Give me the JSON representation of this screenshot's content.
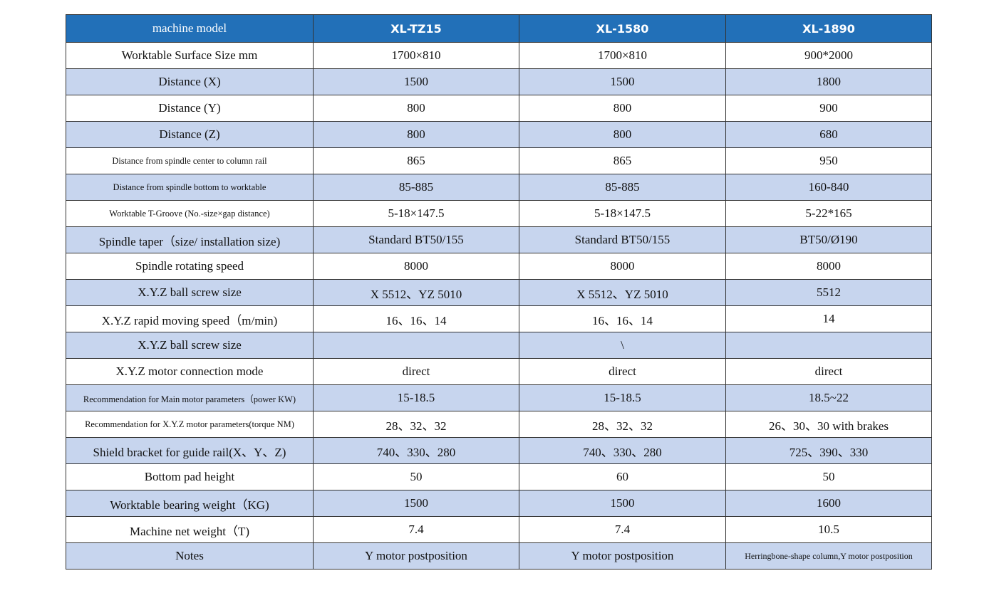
{
  "table": {
    "header": [
      "machine model",
      "XL-TZ15",
      "XL-1580",
      "XL-1890"
    ],
    "rows": [
      [
        "Worktable Surface Size mm",
        "1700×810",
        "1700×810",
        "900*2000"
      ],
      [
        "Distance (X)",
        "1500",
        "1500",
        "1800"
      ],
      [
        "Distance (Y)",
        "800",
        "800",
        "900"
      ],
      [
        "Distance (Z)",
        "800",
        "800",
        "680"
      ],
      [
        "Distance from spindle center to column rail",
        "865",
        "865",
        "950"
      ],
      [
        "Distance from spindle bottom to worktable",
        "85-885",
        "85-885",
        "160-840"
      ],
      [
        "Worktable T-Groove (No.-size×gap distance)",
        "5-18×147.5",
        "5-18×147.5",
        "5-22*165"
      ],
      [
        "Spindle taper（size/ installation size)",
        "Standard BT50/155",
        "Standard BT50/155",
        "BT50/Ø190"
      ],
      [
        "Spindle rotating speed",
        "8000",
        "8000",
        "8000"
      ],
      [
        "X.Y.Z ball screw size",
        "X 5512、YZ  5010",
        "X  5512、YZ  5010",
        "5512"
      ],
      [
        "X.Y.Z rapid moving speed（m/min)",
        "16、16、14",
        "16、16、14",
        "14"
      ],
      [
        "X.Y.Z ball screw size",
        null,
        "\\",
        null
      ],
      [
        "X.Y.Z motor connection mode",
        "direct",
        "direct",
        "direct"
      ],
      [
        "Recommendation for Main motor parameters（power KW)",
        "15-18.5",
        "15-18.5",
        "18.5~22"
      ],
      [
        "Recommendation for X.Y.Z motor parameters(torque NM)",
        "28、32、32",
        "28、32、32",
        "26、30、30 with brakes"
      ],
      [
        "Shield bracket for guide rail(X、Y、Z)",
        "740、330、280",
        "740、330、280",
        "725、390、330"
      ],
      [
        "Bottom pad height",
        "50",
        "60",
        "50"
      ],
      [
        "Worktable bearing weight（KG)",
        "1500",
        "1500",
        "1600"
      ],
      [
        "Machine net weight（T)",
        "7.4",
        "7.4",
        "10.5"
      ],
      [
        "Notes",
        "Y motor postposition",
        "Y motor postposition",
        "Herringbone-shape column,Y motor postposition"
      ]
    ]
  }
}
